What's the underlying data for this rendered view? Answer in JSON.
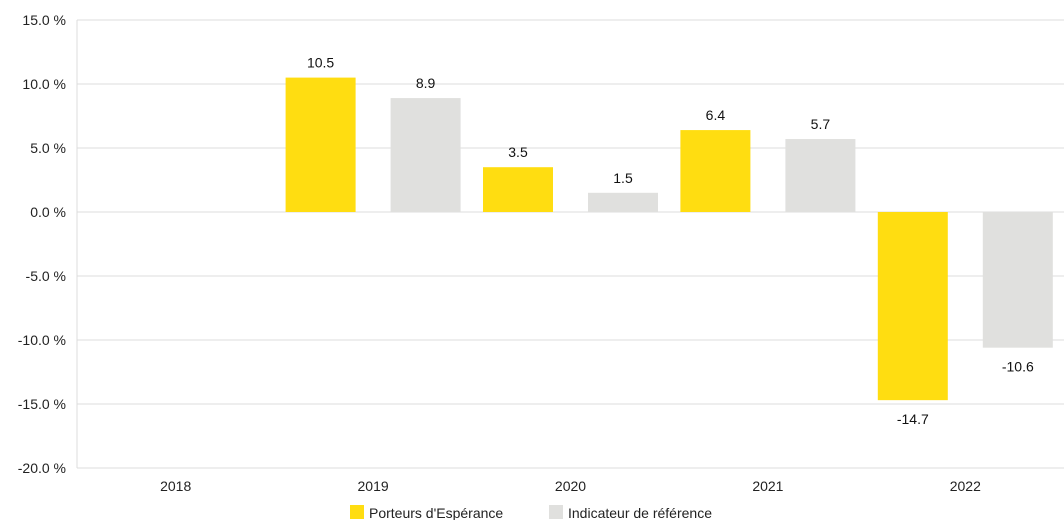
{
  "chart_data": {
    "type": "bar",
    "categories": [
      "2018",
      "2019",
      "2020",
      "2021",
      "2022"
    ],
    "series": [
      {
        "name": "Porteurs d'Espérance",
        "color": "#FFDD11",
        "values": [
          null,
          10.5,
          3.5,
          6.4,
          -14.7
        ],
        "labels": [
          "",
          "10.5",
          "3.5",
          "6.4",
          "-14.7"
        ]
      },
      {
        "name": "Indicateur de référence",
        "color": "#E0E0DE",
        "values": [
          null,
          8.9,
          1.5,
          5.7,
          -10.6
        ],
        "labels": [
          "",
          "8.9",
          "1.5",
          "5.7",
          "-10.6"
        ]
      }
    ],
    "ylim": [
      -20,
      15
    ],
    "yticks": [
      15,
      10,
      5,
      0,
      -5,
      -10,
      -15,
      -20
    ],
    "ytick_labels": [
      "15.0 %",
      "10.0 %",
      "5.0 %",
      "0.0 %",
      "-5.0 %",
      "-10.0 %",
      "-15.0 %",
      "-20.0 %"
    ],
    "grid": true,
    "legend_position": "bottom-center",
    "title": "",
    "xlabel": "",
    "ylabel": ""
  }
}
